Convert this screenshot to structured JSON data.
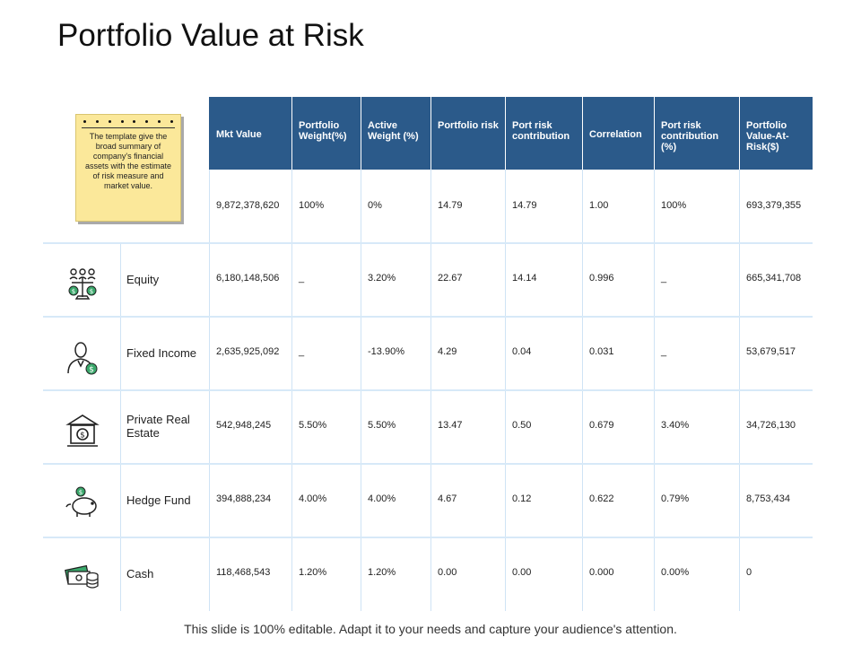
{
  "title": "Portfolio Value at Risk",
  "note": "The template  give the broad summary of company's financial assets with the estimate of risk measure and market value.",
  "headers": [
    "Mkt Value",
    "Portfolio Weight(%)",
    "Active Weight (%)",
    "Portfolio risk",
    "Port risk contribution",
    "Correlation",
    "Port risk contribution (%)",
    "Portfolio Value-At-Risk($)"
  ],
  "total_row": [
    "9,872,378,620",
    "100%",
    "0%",
    "14.79",
    "14.79",
    "1.00",
    "100%",
    "693,379,355"
  ],
  "rows": [
    {
      "label": "Equity",
      "icon": "scales-money-people-icon",
      "values": [
        "6,180,148,506",
        "_",
        "3.20%",
        "22.67",
        "14.14",
        "0.996",
        "_",
        "665,341,708"
      ]
    },
    {
      "label": "Fixed Income",
      "icon": "businessman-dollar-icon",
      "values": [
        "2,635,925,092",
        "_",
        "-13.90%",
        "4.29",
        "0.04",
        "0.031",
        "_",
        "53,679,517"
      ]
    },
    {
      "label": "Private Real Estate",
      "icon": "bank-building-icon",
      "values": [
        "542,948,245",
        "5.50%",
        "5.50%",
        "13.47",
        "0.50",
        "0.679",
        "3.40%",
        "34,726,130"
      ]
    },
    {
      "label": "Hedge Fund",
      "icon": "piggy-bank-icon",
      "values": [
        "394,888,234",
        "4.00%",
        "4.00%",
        "4.67",
        "0.12",
        "0.622",
        "0.79%",
        "8,753,434"
      ]
    },
    {
      "label": "Cash",
      "icon": "cash-coins-icon",
      "values": [
        "118,468,543",
        "1.20%",
        "1.20%",
        "0.00",
        "0.00",
        "0.000",
        "0.00%",
        "0"
      ]
    }
  ],
  "footer": "This slide is 100% editable. Adapt it to your needs and capture your audience's attention.",
  "colors": {
    "header_bg": "#2b5a8a",
    "grid_line": "#d7e9f8",
    "note_bg": "#fbe89a",
    "icon_accent": "#3aa86b"
  }
}
